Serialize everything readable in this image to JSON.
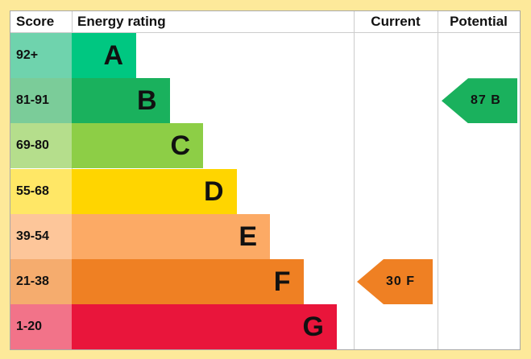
{
  "chart_data": {
    "type": "table",
    "headers": {
      "score": "Score",
      "rating": "Energy rating",
      "current": "Current",
      "potential": "Potential"
    },
    "bands": [
      {
        "letter": "A",
        "range": "92+",
        "color": "#00c781",
        "score_color": "#6fd3ad"
      },
      {
        "letter": "B",
        "range": "81-91",
        "color": "#1ab15d",
        "score_color": "#7bcc99"
      },
      {
        "letter": "C",
        "range": "69-80",
        "color": "#8dce46",
        "score_color": "#b5de8c"
      },
      {
        "letter": "D",
        "range": "55-68",
        "color": "#ffd500",
        "score_color": "#ffe766"
      },
      {
        "letter": "E",
        "range": "39-54",
        "color": "#fcaa65",
        "score_color": "#fdc69a"
      },
      {
        "letter": "F",
        "range": "21-38",
        "color": "#ef8023",
        "score_color": "#f5ac6e"
      },
      {
        "letter": "G",
        "range": "1-20",
        "color": "#e9153b",
        "score_color": "#f27389"
      }
    ],
    "current": {
      "value": 30,
      "band": "F",
      "label": "30  F",
      "color": "#ef8023"
    },
    "potential": {
      "value": 87,
      "band": "B",
      "label": "87  B",
      "color": "#1ab15d"
    }
  }
}
